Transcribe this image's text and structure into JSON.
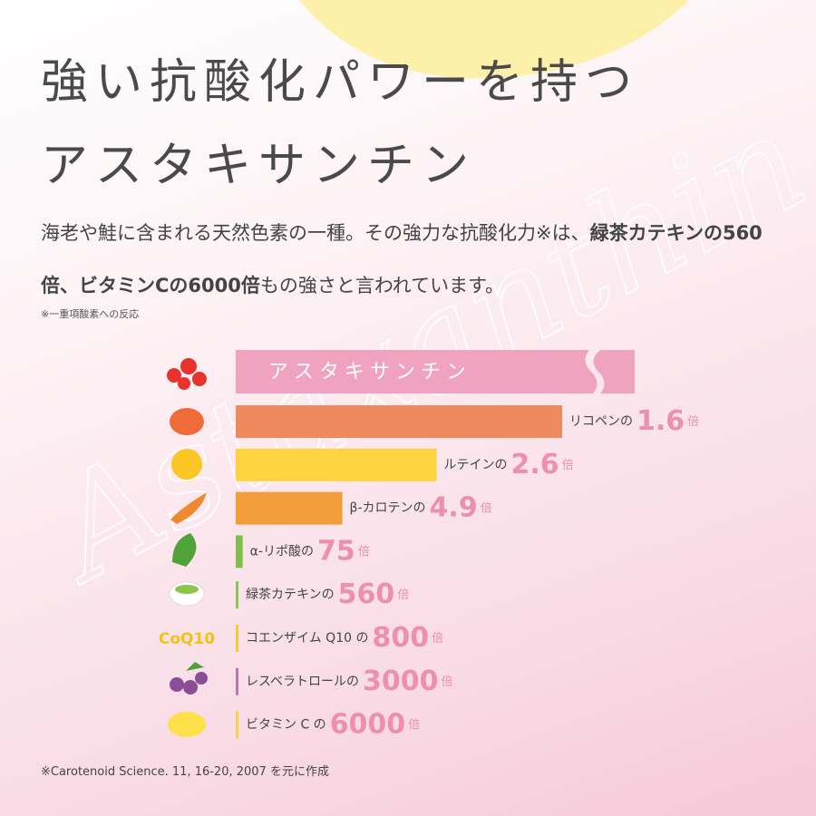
{
  "heading": [
    "強い抗酸化パワーを持つ",
    "アスタキサンチン"
  ],
  "body": [
    "海老や鮭に含まれる天然色素の一種。その強力な抗酸化力※は、",
    "緑茶カテキンの560倍、ビタミンCの6000倍",
    "もの強さと言われています。"
  ],
  "note": "※一重項酸素への反応",
  "watermark": "Astaxanthin",
  "icon_text": "CoQ10",
  "source": "※Carotenoid Science. 11, 16-20, 2007 を元に作成",
  "chart_data": {
    "type": "bar",
    "orientation": "horizontal",
    "reference": {
      "name": "アスタキサンチン",
      "color": "#f0a3bf"
    },
    "unit": "倍",
    "categories": [
      "リコペンの",
      "ルテインの",
      "β-カロテンの",
      "α-リポ酸の",
      "緑茶カテキンの",
      "コエンザイム Q10 の",
      "レスベラトロールの",
      "ビタミン C の"
    ],
    "values": [
      1.6,
      2.6,
      4.9,
      75,
      560,
      800,
      3000,
      6000
    ],
    "colors": [
      "#ef8a5f",
      "#fdd33e",
      "#f29c3a",
      "#7fc04c",
      "#8cc45c",
      "#f7cc2e",
      "#b07ab8",
      "#f7d24a"
    ],
    "value_color": "#ec8fb1"
  }
}
